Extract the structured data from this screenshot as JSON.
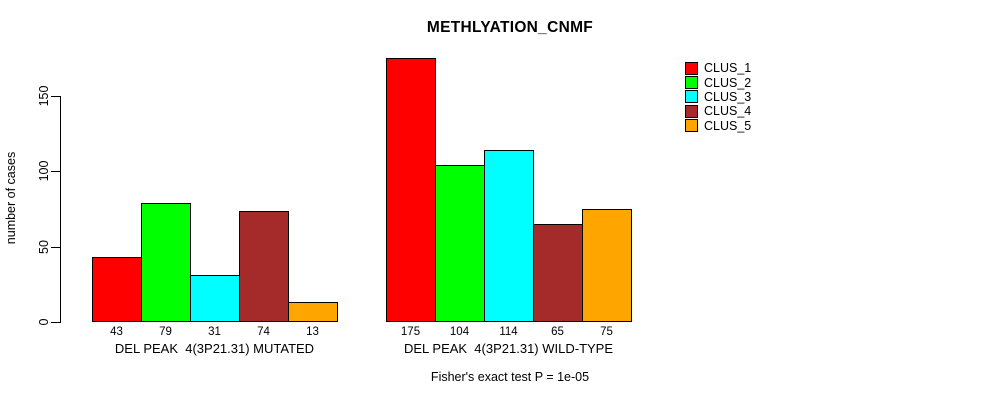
{
  "chart_data": {
    "type": "bar",
    "title": "METHLYATION_CNMF",
    "ylabel": "number of cases",
    "xlabel": "",
    "annotation": "Fisher's exact test P = 1e-05",
    "yticks": [
      0,
      50,
      100,
      150
    ],
    "ylim": [
      0,
      180
    ],
    "grid": false,
    "legend_position": "top-right",
    "bar_value_labels": true,
    "categories": [
      "DEL PEAK  4(3P21.31) MUTATED",
      "DEL PEAK  4(3P21.31) WILD-TYPE"
    ],
    "series": [
      {
        "name": "CLUS_1",
        "color": "#FF0000",
        "values": [
          43,
          175
        ]
      },
      {
        "name": "CLUS_2",
        "color": "#00FF00",
        "values": [
          79,
          104
        ]
      },
      {
        "name": "CLUS_3",
        "color": "#00FFFF",
        "values": [
          31,
          114
        ]
      },
      {
        "name": "CLUS_4",
        "color": "#A52A2A",
        "values": [
          74,
          65
        ]
      },
      {
        "name": "CLUS_5",
        "color": "#FFA500",
        "values": [
          13,
          75
        ]
      }
    ]
  }
}
